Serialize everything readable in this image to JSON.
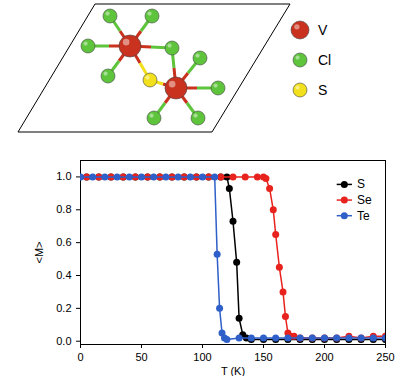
{
  "structure": {
    "legend": [
      {
        "label": "V",
        "color": "#c8321e"
      },
      {
        "label": "Cl",
        "color": "#5ec43c"
      },
      {
        "label": "S",
        "color": "#f2e01c"
      }
    ]
  },
  "chart_data": {
    "type": "line",
    "x_label": "T (K)",
    "y_label": "<M>",
    "xlim": [
      0,
      250
    ],
    "xticks": [
      0,
      50,
      100,
      150,
      200,
      250
    ],
    "ylim": [
      -0.02,
      1.1
    ],
    "yticks": [
      {
        "value": 0,
        "label": "0.0"
      },
      {
        "value": 0.2,
        "label": "0.2"
      },
      {
        "value": 0.4,
        "label": "0.4"
      },
      {
        "value": 0.6,
        "label": "0.6"
      },
      {
        "value": 0.8,
        "label": "0.8"
      },
      {
        "value": 1,
        "label": "1.0"
      }
    ],
    "legend": "top-right",
    "series": [
      {
        "name": "S",
        "color": "#000000",
        "marker": "circle",
        "line_style": "solid",
        "x": [
          5,
          15,
          25,
          35,
          45,
          55,
          65,
          75,
          85,
          95,
          105,
          115,
          120,
          122,
          125,
          128,
          130,
          133,
          136,
          140,
          150,
          160,
          170,
          180,
          190,
          200,
          210,
          220,
          230,
          240,
          250
        ],
        "values": [
          1,
          1,
          1,
          1,
          1,
          1,
          1,
          1,
          1,
          1,
          1,
          1,
          1,
          0.93,
          0.73,
          0.48,
          0.14,
          0.04,
          0.02,
          0.01,
          0.01,
          0.01,
          0.01,
          0.01,
          0.01,
          0.01,
          0.01,
          0.01,
          0.01,
          0.01,
          0.01
        ]
      },
      {
        "name": "Se",
        "color": "#e8231e",
        "marker": "circle",
        "line_style": "solid",
        "x": [
          5,
          15,
          25,
          35,
          45,
          55,
          65,
          75,
          85,
          95,
          105,
          115,
          125,
          135,
          145,
          150,
          152,
          155,
          158,
          160,
          163,
          166,
          168,
          170,
          172,
          175,
          180,
          190,
          200,
          210,
          220,
          230,
          240,
          250
        ],
        "values": [
          1,
          1,
          1,
          1,
          1,
          1,
          1,
          1,
          1,
          1,
          1,
          1,
          1,
          1,
          1,
          1,
          0.99,
          0.93,
          0.8,
          0.65,
          0.45,
          0.3,
          0.15,
          0.05,
          0.03,
          0.03,
          0.02,
          0.02,
          0.02,
          0.02,
          0.03,
          0.02,
          0.03,
          0.03
        ]
      },
      {
        "name": "Te",
        "color": "#2f5fc8",
        "marker": "circle",
        "line_style": "solid",
        "x": [
          0,
          10,
          20,
          30,
          40,
          50,
          60,
          70,
          80,
          90,
          100,
          110,
          112,
          114,
          116,
          118,
          120,
          130,
          140,
          150,
          160,
          170,
          180,
          190,
          200,
          210,
          220,
          230,
          240,
          250
        ],
        "values": [
          1,
          1,
          1,
          1,
          1,
          1,
          1,
          1,
          1,
          1,
          1,
          1,
          0.53,
          0.2,
          0.05,
          0.02,
          0.01,
          0.02,
          0.02,
          0.02,
          0.02,
          0.02,
          0.02,
          0.02,
          0.02,
          0.02,
          0.02,
          0.02,
          0.02,
          0.02
        ]
      }
    ]
  }
}
